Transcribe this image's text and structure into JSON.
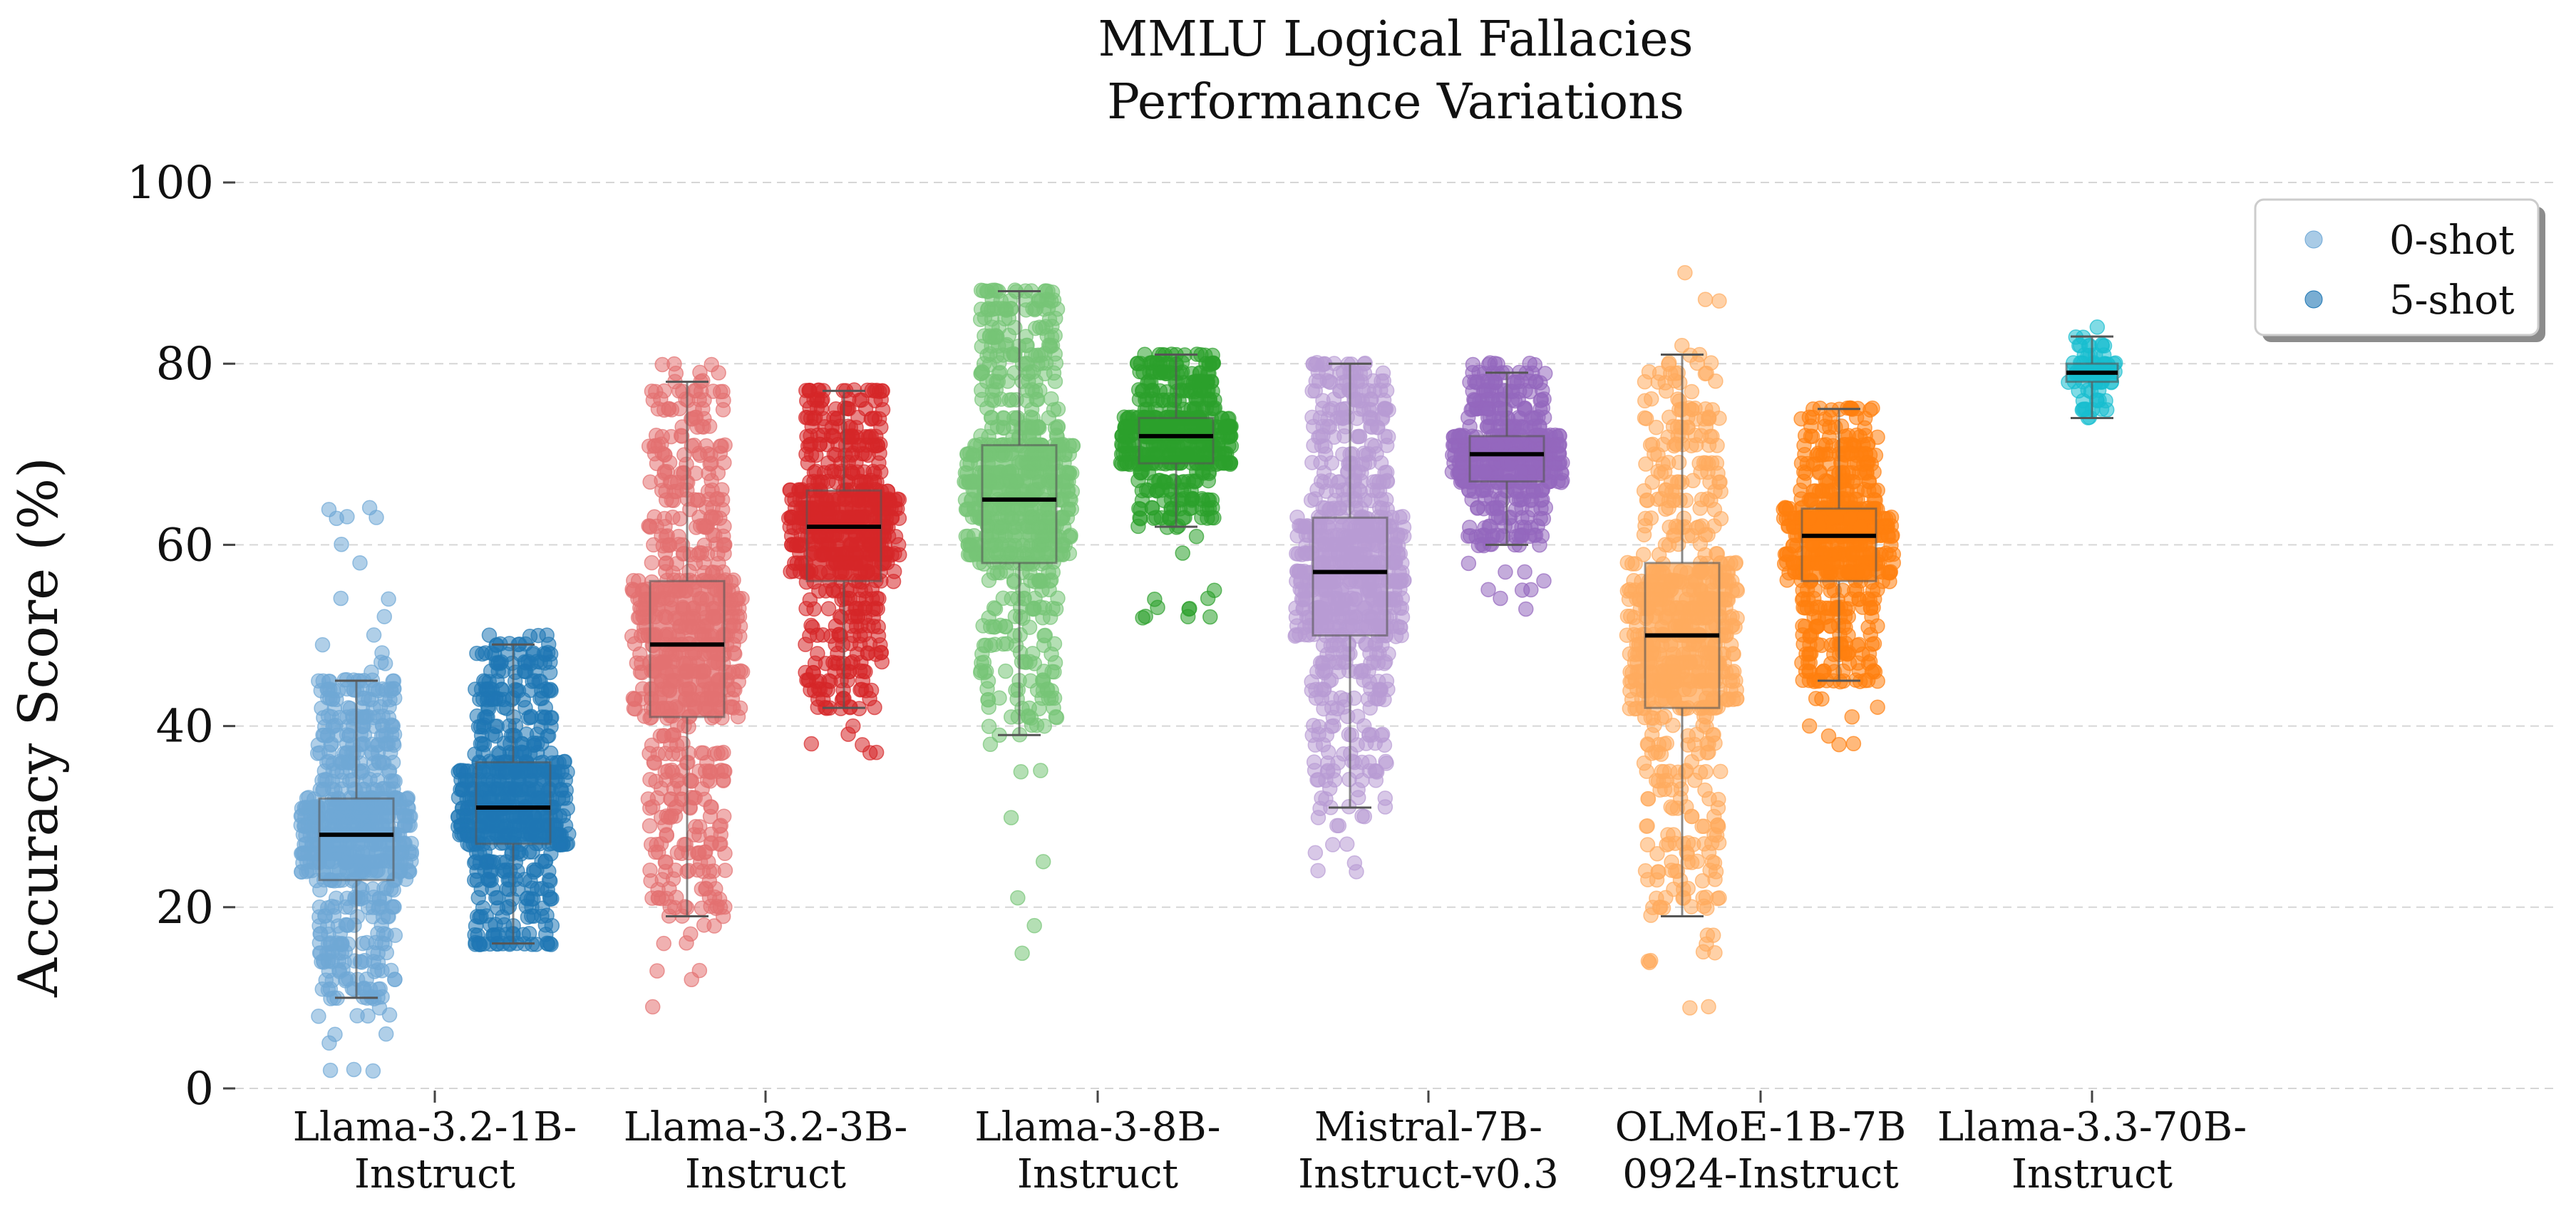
{
  "chart_data": {
    "type": "scatter",
    "title_line1": "MMLU Logical Fallacies",
    "title_line2": "Performance Variations",
    "ylabel": "Accuracy Score (%)",
    "xlabel": "",
    "ylim": [
      0,
      100
    ],
    "yticks": [
      0,
      20,
      40,
      60,
      80,
      100
    ],
    "grid": "horizontal dashed",
    "legend": {
      "placement": "top-right",
      "entries": [
        "0-shot",
        "5-shot"
      ]
    },
    "categories": [
      {
        "line1": "Llama-3.2-1B-",
        "line2": "Instruct"
      },
      {
        "line1": "Llama-3.2-3B-",
        "line2": "Instruct"
      },
      {
        "line1": "Llama-3-8B-",
        "line2": "Instruct"
      },
      {
        "line1": "Mistral-7B-",
        "line2": "Instruct-v0.3"
      },
      {
        "line1": "OLMoE-1B-7B",
        "line2": "0924-Instruct"
      },
      {
        "line1": "Llama-3.3-70B-",
        "line2": "Instruct"
      }
    ],
    "groups": [
      {
        "category": 0,
        "shot": "0-shot",
        "color": "#6fa8d6",
        "whisker_low": 10,
        "q1": 23,
        "median": 28,
        "q3": 32,
        "whisker_high": 45,
        "min": 0,
        "max": 66,
        "n": 700
      },
      {
        "category": 0,
        "shot": "5-shot",
        "color": "#1f77b4",
        "whisker_low": 16,
        "q1": 27,
        "median": 31,
        "q3": 36,
        "whisker_high": 49,
        "min": 16,
        "max": 50,
        "n": 600
      },
      {
        "category": 1,
        "shot": "0-shot",
        "color": "#e37171",
        "whisker_low": 19,
        "q1": 41,
        "median": 49,
        "q3": 56,
        "whisker_high": 78,
        "min": 8,
        "max": 81,
        "n": 700
      },
      {
        "category": 1,
        "shot": "5-shot",
        "color": "#d62728",
        "whisker_low": 42,
        "q1": 56,
        "median": 62,
        "q3": 66,
        "whisker_high": 77,
        "min": 36,
        "max": 77,
        "n": 600
      },
      {
        "category": 2,
        "shot": "0-shot",
        "color": "#76c476",
        "whisker_low": 39,
        "q1": 58,
        "median": 65,
        "q3": 71,
        "whisker_high": 88,
        "min": 14,
        "max": 88,
        "n": 700
      },
      {
        "category": 2,
        "shot": "5-shot",
        "color": "#2ca02c",
        "whisker_low": 62,
        "q1": 69,
        "median": 72,
        "q3": 74,
        "whisker_high": 81,
        "min": 51,
        "max": 81,
        "n": 500
      },
      {
        "category": 3,
        "shot": "0-shot",
        "color": "#b89bd4",
        "whisker_low": 31,
        "q1": 50,
        "median": 57,
        "q3": 63,
        "whisker_high": 80,
        "min": 23,
        "max": 80,
        "n": 700
      },
      {
        "category": 3,
        "shot": "5-shot",
        "color": "#9467bd",
        "whisker_low": 60,
        "q1": 67,
        "median": 70,
        "q3": 72,
        "whisker_high": 79,
        "min": 52,
        "max": 80,
        "n": 500
      },
      {
        "category": 4,
        "shot": "0-shot",
        "color": "#ffab5e",
        "whisker_low": 19,
        "q1": 42,
        "median": 50,
        "q3": 58,
        "whisker_high": 81,
        "min": 7,
        "max": 95,
        "n": 700
      },
      {
        "category": 4,
        "shot": "5-shot",
        "color": "#ff7f0e",
        "whisker_low": 45,
        "q1": 56,
        "median": 61,
        "q3": 64,
        "whisker_high": 75,
        "min": 38,
        "max": 75,
        "n": 600
      },
      {
        "category": 5,
        "shot": "0-shot",
        "color": "#17becf",
        "whisker_low": 74,
        "q1": 78,
        "median": 79,
        "q3": 80,
        "whisker_high": 83,
        "min": 74,
        "max": 85,
        "n": 80
      }
    ]
  }
}
